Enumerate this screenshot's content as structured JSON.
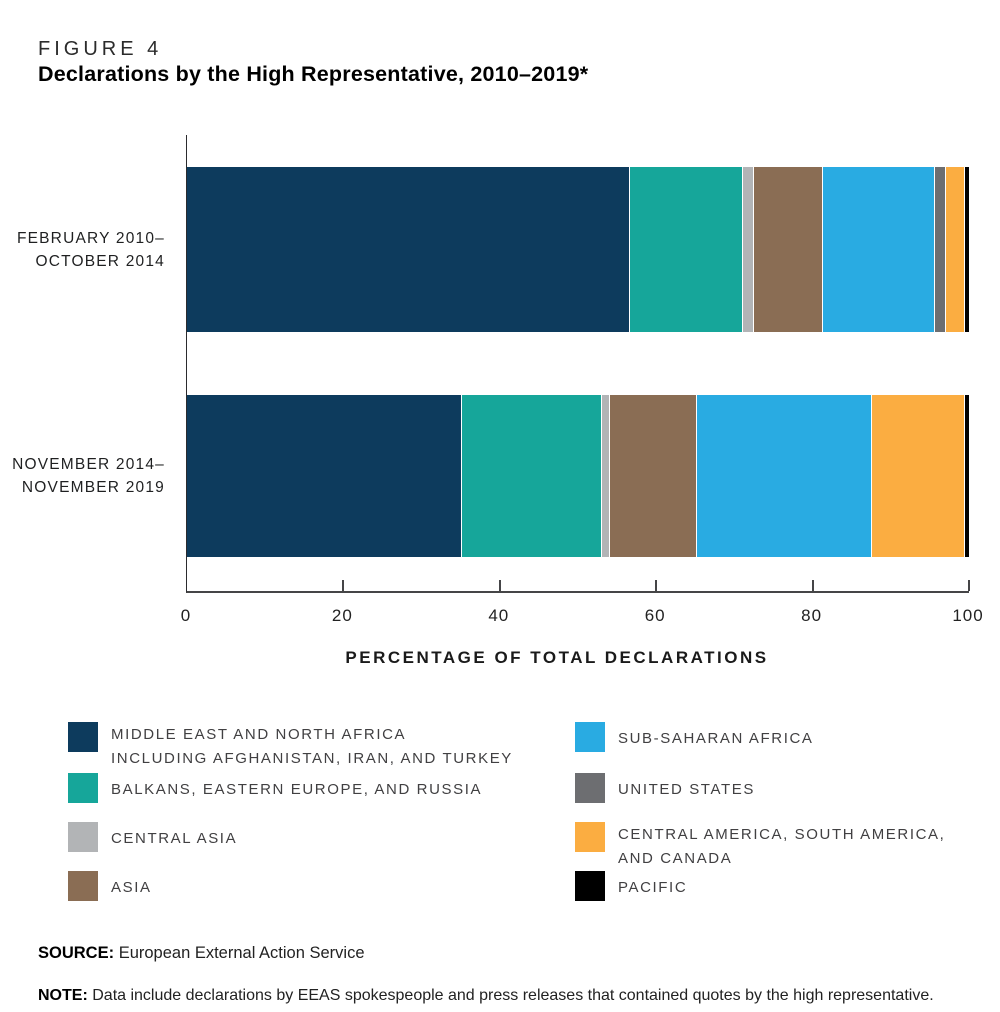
{
  "figure_label": "FIGURE 4",
  "title": "Declarations by the High Representative, 2010–2019*",
  "x_axis": {
    "label": "PERCENTAGE OF TOTAL DECLARATIONS",
    "ticks": [
      0,
      20,
      40,
      60,
      80,
      100
    ],
    "range": [
      0,
      100
    ]
  },
  "chart_data": {
    "type": "bar",
    "orientation": "horizontal",
    "stacked": true,
    "unit": "percent of total declarations",
    "categories": [
      "FEBRUARY 2010–OCTOBER 2014",
      "NOVEMBER 2014–NOVEMBER 2019"
    ],
    "category_label_lines": [
      [
        "FEBRUARY 2010–",
        "OCTOBER 2014"
      ],
      [
        "NOVEMBER 2014–",
        "NOVEMBER 2019"
      ]
    ],
    "xlabel": "PERCENTAGE OF TOTAL DECLARATIONS",
    "xlim": [
      0,
      100
    ],
    "grid": false,
    "legend_position": "bottom",
    "series": [
      {
        "name": "MIDDLE EAST AND NORTH AFRICA INCLUDING AFGHANISTAN, IRAN, AND TURKEY",
        "color": "#0d3b5d",
        "values": [
          56.6,
          35.2
        ]
      },
      {
        "name": "BALKANS, EASTERN EUROPE, AND RUSSIA",
        "color": "#16a69a",
        "values": [
          14.5,
          17.9
        ]
      },
      {
        "name": "CENTRAL ASIA",
        "color": "#b2b4b6",
        "values": [
          1.4,
          1.0
        ]
      },
      {
        "name": "ASIA",
        "color": "#8a6d54",
        "values": [
          8.8,
          11.1
        ]
      },
      {
        "name": "SUB-SAHARAN AFRICA",
        "color": "#29abe2",
        "values": [
          14.4,
          22.4
        ]
      },
      {
        "name": "UNITED STATES",
        "color": "#6d6e71",
        "values": [
          1.4,
          0
        ]
      },
      {
        "name": "CENTRAL AMERICA, SOUTH AMERICA, AND CANADA",
        "color": "#fbad41",
        "values": [
          2.4,
          11.9
        ]
      },
      {
        "name": "PACIFIC",
        "color": "#000000",
        "values": [
          0.5,
          0.5
        ]
      }
    ]
  },
  "legend": {
    "columns": [
      {
        "items": [
          {
            "color": "#0d3b5d",
            "lines": [
              "MIDDLE EAST AND NORTH AFRICA",
              "INCLUDING AFGHANISTAN, IRAN, AND TURKEY"
            ]
          },
          {
            "color": "#16a69a",
            "lines": [
              "BALKANS, EASTERN EUROPE, AND RUSSIA"
            ]
          },
          {
            "color": "#b2b4b6",
            "lines": [
              "CENTRAL ASIA"
            ]
          },
          {
            "color": "#8a6d54",
            "lines": [
              "ASIA"
            ]
          }
        ]
      },
      {
        "items": [
          {
            "color": "#29abe2",
            "lines": [
              "SUB-SAHARAN AFRICA"
            ]
          },
          {
            "color": "#6d6e71",
            "lines": [
              "UNITED STATES"
            ]
          },
          {
            "color": "#fbad41",
            "lines": [
              "CENTRAL AMERICA, SOUTH AMERICA,",
              "AND CANADA"
            ]
          },
          {
            "color": "#000000",
            "lines": [
              "PACIFIC"
            ]
          }
        ]
      }
    ]
  },
  "source": {
    "label": "SOURCE:",
    "text": "European External Action Service"
  },
  "note": {
    "label": "NOTE:",
    "text": "Data include declarations by EEAS spokespeople and press releases that contained quotes by the high representative."
  }
}
